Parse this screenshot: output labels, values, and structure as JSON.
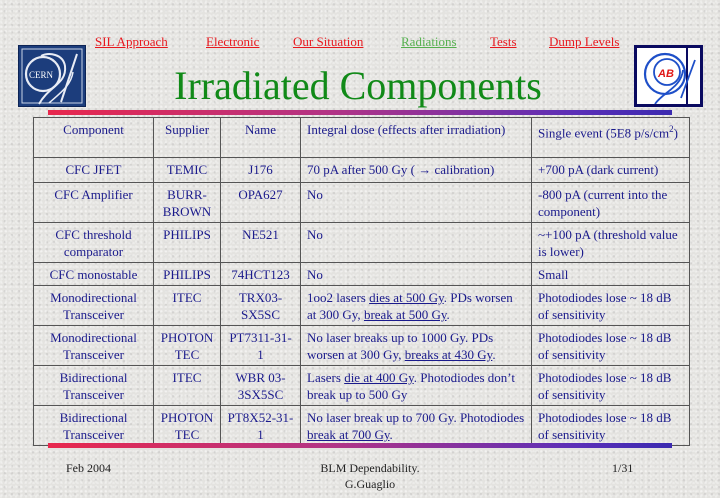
{
  "nav": {
    "items": [
      {
        "label": "SIL Approach",
        "active": false
      },
      {
        "label": "Electronic",
        "active": false
      },
      {
        "label": "Our Situation",
        "active": false
      },
      {
        "label": "Radiations",
        "active": true
      },
      {
        "label": "Tests",
        "active": false
      },
      {
        "label": "Dump Levels",
        "active": false
      }
    ]
  },
  "title": "Irradiated Components",
  "logos": {
    "left": {
      "icon": "cern-logo-icon",
      "text": "CERN"
    },
    "right": {
      "icon": "ab-logo-icon",
      "text": "AB"
    }
  },
  "colors": {
    "nav_link": "#e8181e",
    "nav_active": "#55b04e",
    "title": "#118a18",
    "table_text": "#1a1a8c",
    "bar_start": "#e8284d",
    "bar_end": "#3b2ab0"
  },
  "table": {
    "headers": {
      "component": "Component",
      "supplier": "Supplier",
      "name": "Name",
      "integral_dose": "Integral dose (effects after irradiation)",
      "single_event_prefix": "Single event (5E8 p/s/cm",
      "single_event_sup": "2",
      "single_event_suffix": ")"
    },
    "rows": [
      {
        "component": "CFC JFET",
        "supplier": "TEMIC",
        "name": "J176",
        "dose": [
          {
            "t": "70 pA after 500 Gy ( → calibration)",
            "u": false
          }
        ],
        "single": "+700 pA (dark current)"
      },
      {
        "component": "CFC Amplifier",
        "supplier": "BURR-BROWN",
        "name": "OPA627",
        "dose": [
          {
            "t": "No",
            "u": false
          }
        ],
        "single": "-800 pA (current into the component)"
      },
      {
        "component": "CFC threshold comparator",
        "supplier": "PHILIPS",
        "name": "NE521",
        "dose": [
          {
            "t": "No",
            "u": false
          }
        ],
        "single": "~+100 pA (threshold value is lower)"
      },
      {
        "component": "CFC monostable",
        "supplier": "PHILIPS",
        "name": "74HCT123",
        "dose": [
          {
            "t": "No",
            "u": false
          }
        ],
        "single": "Small"
      },
      {
        "component": "Monodirectional Transceiver",
        "supplier": "ITEC",
        "name": "TRX03-SX5SC",
        "dose": [
          {
            "t": "1oo2 lasers ",
            "u": false
          },
          {
            "t": "dies at 500 Gy",
            "u": true
          },
          {
            "t": ". PDs worsen at 300 Gy, ",
            "u": false
          },
          {
            "t": "break at 500 Gy",
            "u": true
          },
          {
            "t": ".",
            "u": false
          }
        ],
        "single": "Photodiodes lose ~ 18 dB of sensitivity"
      },
      {
        "component": "Monodirectional Transceiver",
        "supplier": "PHOTON TEC",
        "name": "PT7311-31-1",
        "dose": [
          {
            "t": "No laser breaks up to 1000 Gy. PDs worsen at 300 Gy, ",
            "u": false
          },
          {
            "t": "breaks at 430 Gy",
            "u": true
          },
          {
            "t": ".",
            "u": false
          }
        ],
        "single": "Photodiodes lose ~ 18 dB of sensitivity"
      },
      {
        "component": "Bidirectional Transceiver",
        "supplier": "ITEC",
        "name": "WBR 03-3SX5SC",
        "dose": [
          {
            "t": "Lasers ",
            "u": false
          },
          {
            "t": "die at 400 Gy",
            "u": true
          },
          {
            "t": ". Photodiodes don’t break up to 500 Gy",
            "u": false
          }
        ],
        "single": "Photodiodes lose ~ 18 dB of sensitivity"
      },
      {
        "component": "Bidirectional Transceiver",
        "supplier": "PHOTON TEC",
        "name": "PT8X52-31-1",
        "dose": [
          {
            "t": "No laser break up to 700 Gy. Photodiodes ",
            "u": false
          },
          {
            "t": "break at 700 Gy",
            "u": true
          },
          {
            "t": ".",
            "u": false
          }
        ],
        "single": "Photodiodes lose ~ 18 dB of sensitivity"
      }
    ]
  },
  "footer": {
    "date": "Feb 2004",
    "center_line1": "BLM Dependability.",
    "center_line2": "G.Guaglio",
    "page": "1/31"
  }
}
